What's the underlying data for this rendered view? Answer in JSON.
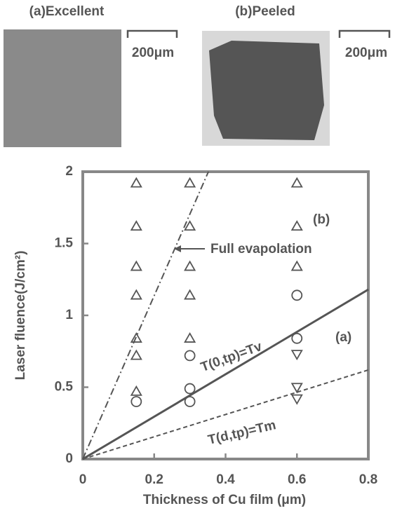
{
  "panels": [
    {
      "label": "(a)Excellent",
      "scale": "200μm"
    },
    {
      "label": "(b)Peeled",
      "scale": "200μm"
    }
  ],
  "chart_data": {
    "type": "scatter",
    "xlabel": "Thickness of Cu film (μm)",
    "ylabel": "Laser fluence(J/cm²)",
    "xlim": [
      0,
      0.8
    ],
    "ylim": [
      0,
      2
    ],
    "xticks": [
      0,
      0.2,
      0.4,
      0.6,
      0.8
    ],
    "yticks": [
      0,
      0.5,
      1,
      1.5,
      2
    ],
    "color": "#555555",
    "series": [
      {
        "marker": "triangle-up",
        "x": [
          0.15,
          0.15,
          0.15,
          0.15,
          0.15,
          0.15,
          0.15,
          0.3,
          0.3,
          0.3,
          0.3,
          0.3,
          0.6,
          0.6,
          0.6
        ],
        "y": [
          1.92,
          1.62,
          1.34,
          1.14,
          0.84,
          0.72,
          0.47,
          1.92,
          1.62,
          1.34,
          1.14,
          0.84,
          1.92,
          1.62,
          1.34
        ]
      },
      {
        "marker": "circle",
        "x": [
          0.15,
          0.3,
          0.3,
          0.3,
          0.6,
          0.6
        ],
        "y": [
          0.4,
          0.72,
          0.49,
          0.4,
          1.14,
          0.84
        ]
      },
      {
        "marker": "triangle-down",
        "x": [
          0.6,
          0.6,
          0.6
        ],
        "y": [
          0.73,
          0.5,
          0.42
        ]
      }
    ],
    "lines": [
      {
        "name": "Full evapolation",
        "style": "dashdot",
        "x": [
          0,
          0.352
        ],
        "y": [
          0,
          2
        ]
      },
      {
        "name": "T(0,tp)=Tv",
        "style": "solid",
        "x": [
          0,
          0.8
        ],
        "y": [
          0,
          1.18
        ]
      },
      {
        "name": "T(d,tp)=Tm",
        "style": "dashed",
        "x": [
          0,
          0.8
        ],
        "y": [
          0,
          0.62
        ]
      }
    ],
    "annotations": [
      "(a)",
      "(b)"
    ]
  }
}
